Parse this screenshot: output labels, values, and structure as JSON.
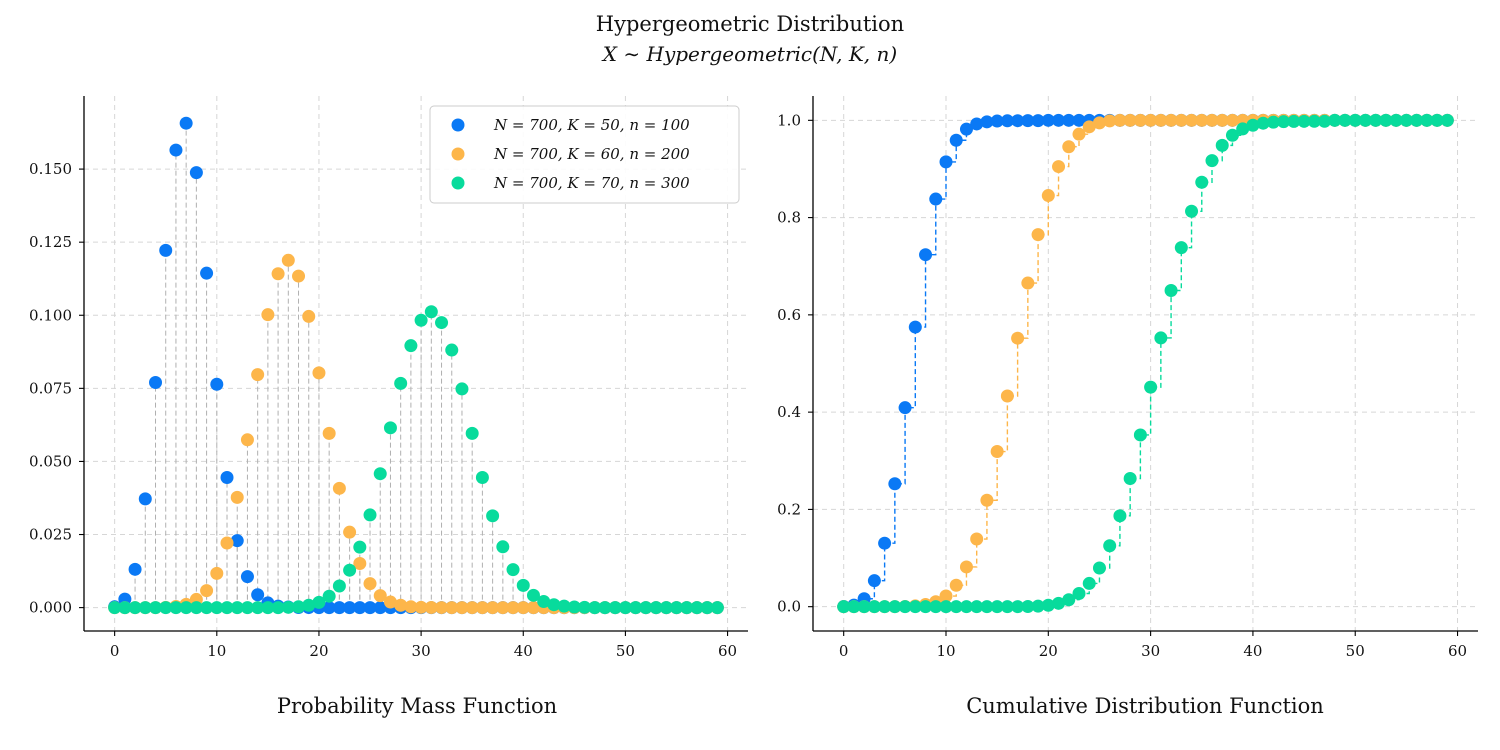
{
  "title": "Hypergeometric Distribution",
  "subtitle": "X ∼ Hypergeometric(N, K, n)",
  "colors": {
    "s1": "#0a79f5",
    "s2": "#fdb64a",
    "s3": "#08db9c",
    "grid": "#d6d6d6",
    "stem": "#b0b0b0"
  },
  "chart_data": [
    {
      "type": "scatter",
      "kind": "pmf",
      "xlabel": "Probability Mass Function",
      "xlim": [
        -3,
        62
      ],
      "ylim": [
        -0.008,
        0.175
      ],
      "xticks": [
        0,
        10,
        20,
        30,
        40,
        50,
        60
      ],
      "xtick_labels": [
        "0",
        "10",
        "20",
        "30",
        "40",
        "50",
        "60"
      ],
      "yticks": [
        0,
        0.025,
        0.05,
        0.075,
        0.1,
        0.125,
        0.15
      ],
      "ytick_labels": [
        "0.000",
        "0.025",
        "0.050",
        "0.075",
        "0.100",
        "0.125",
        "0.150"
      ],
      "grid": true,
      "legend": {
        "placement": "top-right",
        "entries": [
          "N = 700, K = 50, n = 100",
          "N = 700, K = 60, n = 200",
          "N = 700, K = 70, n = 300"
        ]
      },
      "series": [
        {
          "name": "N = 700, K = 50, n = 100",
          "color": "#0a79f5",
          "x_start": 0,
          "values": [
            0.0003,
            0.0029,
            0.0131,
            0.0372,
            0.077,
            0.1222,
            0.1565,
            0.1657,
            0.1488,
            0.1144,
            0.0764,
            0.0445,
            0.0229,
            0.0106,
            0.0044,
            0.0016,
            0.0005,
            0.0002,
            4e-05,
            1e-05,
            0,
            0,
            0,
            0,
            0,
            0,
            0,
            0,
            0,
            0,
            0,
            0,
            0,
            0,
            0,
            0,
            0,
            0,
            0,
            0,
            0,
            0,
            0,
            0,
            0,
            0,
            0,
            0,
            0,
            0,
            0,
            0,
            0,
            0,
            0,
            0,
            0,
            0,
            0,
            0
          ]
        },
        {
          "name": "N = 700, K = 60, n = 200",
          "color": "#fdb64a",
          "x_start": 0,
          "values": [
            0,
            0,
            0,
            0,
            0,
            0.0001,
            0.0004,
            0.0011,
            0.0028,
            0.0058,
            0.0117,
            0.0221,
            0.0377,
            0.0574,
            0.0797,
            0.1002,
            0.1142,
            0.1188,
            0.1134,
            0.0996,
            0.0803,
            0.0596,
            0.0408,
            0.0258,
            0.0151,
            0.0082,
            0.0041,
            0.0019,
            0.0008,
            0.0003,
            0.0001,
            4e-05,
            1e-05,
            0,
            0,
            0,
            0,
            0,
            0,
            0,
            0,
            0,
            0,
            0,
            0,
            0,
            0,
            0,
            0,
            0,
            0,
            0,
            0,
            0,
            0,
            0,
            0,
            0,
            0,
            0
          ]
        },
        {
          "name": "N = 700, K = 70, n = 300",
          "color": "#08db9c",
          "x_start": 0,
          "values": [
            0,
            0,
            0,
            0,
            0,
            0,
            0,
            0,
            0,
            0,
            0,
            0,
            0,
            0,
            0,
            0,
            0,
            0.0001,
            0.0003,
            0.0008,
            0.0018,
            0.0039,
            0.0074,
            0.0128,
            0.0207,
            0.0317,
            0.0458,
            0.0615,
            0.0767,
            0.0896,
            0.0983,
            0.1012,
            0.0975,
            0.0881,
            0.0748,
            0.0596,
            0.0445,
            0.0314,
            0.0208,
            0.013,
            0.0076,
            0.0042,
            0.0021,
            0.001,
            0.0005,
            0.0002,
            0.0001,
            0,
            0,
            0,
            0,
            0,
            0,
            0,
            0,
            0,
            0,
            0,
            0,
            0
          ]
        }
      ]
    },
    {
      "type": "scatter",
      "kind": "cdf",
      "xlabel": "Cumulative Distribution Function",
      "xlim": [
        -3,
        62
      ],
      "ylim": [
        -0.05,
        1.05
      ],
      "xticks": [
        0,
        10,
        20,
        30,
        40,
        50,
        60
      ],
      "xtick_labels": [
        "0",
        "10",
        "20",
        "30",
        "40",
        "50",
        "60"
      ],
      "yticks": [
        0,
        0.2,
        0.4,
        0.6,
        0.8,
        1.0
      ],
      "ytick_labels": [
        "0.0",
        "0.2",
        "0.4",
        "0.6",
        "0.8",
        "1.0"
      ],
      "grid": true,
      "series": [
        {
          "name": "N = 700, K = 50, n = 100",
          "color": "#0a79f5",
          "x_start": 0,
          "values": [
            0.0003,
            0.0032,
            0.0163,
            0.0535,
            0.1305,
            0.2527,
            0.4092,
            0.5749,
            0.7237,
            0.8381,
            0.9145,
            0.959,
            0.9819,
            0.9925,
            0.9969,
            0.9985,
            0.999,
            0.9992,
            0.9993,
            0.9993,
            1,
            1,
            1,
            1,
            1,
            1,
            1,
            1,
            1,
            1,
            1,
            1,
            1,
            1,
            1,
            1,
            1,
            1,
            1,
            1,
            1,
            1,
            1,
            1,
            1,
            1,
            1,
            1,
            1,
            1,
            1,
            1,
            1,
            1,
            1,
            1,
            1,
            1,
            1,
            1
          ]
        },
        {
          "name": "N = 700, K = 60, n = 200",
          "color": "#fdb64a",
          "x_start": 0,
          "values": [
            0,
            0,
            0,
            0,
            0,
            0.0001,
            0.0005,
            0.0016,
            0.0044,
            0.0102,
            0.0219,
            0.044,
            0.0817,
            0.1391,
            0.2188,
            0.319,
            0.4332,
            0.552,
            0.6654,
            0.765,
            0.8453,
            0.9049,
            0.9457,
            0.9715,
            0.9866,
            0.9948,
            0.9989,
            1,
            1,
            1,
            1,
            1,
            1,
            1,
            1,
            1,
            1,
            1,
            1,
            1,
            1,
            1,
            1,
            1,
            1,
            1,
            1,
            1,
            1,
            1,
            1,
            1,
            1,
            1,
            1,
            1,
            1,
            1,
            1,
            1
          ]
        },
        {
          "name": "N = 700, K = 70, n = 300",
          "color": "#08db9c",
          "x_start": 0,
          "values": [
            0,
            0,
            0,
            0,
            0,
            0,
            0,
            0,
            0,
            0,
            0,
            0,
            0,
            0,
            0,
            0,
            0,
            0.0001,
            0.0004,
            0.0012,
            0.003,
            0.0069,
            0.0143,
            0.0271,
            0.0478,
            0.0795,
            0.1253,
            0.1868,
            0.2635,
            0.3531,
            0.4514,
            0.5526,
            0.6501,
            0.7382,
            0.813,
            0.8726,
            0.9171,
            0.9485,
            0.9693,
            0.9823,
            0.9899,
            0.9941,
            0.9962,
            0.9972,
            0.9977,
            0.9979,
            0.998,
            0.998,
            1,
            1,
            1,
            1,
            1,
            1,
            1,
            1,
            1,
            1,
            1,
            1
          ]
        }
      ]
    }
  ]
}
